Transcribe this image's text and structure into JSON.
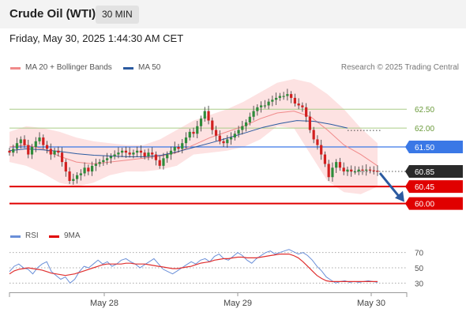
{
  "header": {
    "instrument": "Crude Oil (WTI)",
    "timeframe": "30 MIN"
  },
  "datetime": "Friday, May 30, 2025 1:44:30 AM CET",
  "legend": {
    "ma20": "MA 20 + Bollinger Bands",
    "ma50": "MA 50",
    "copyright": "Research © 2025 Trading Central",
    "rsi": "RSI",
    "ma9": "9MA"
  },
  "colors": {
    "ma20": "#f08a8a",
    "ma50": "#2b5aa0",
    "bollinger": "#fde2e2",
    "bullish": "#2e8b3a",
    "bearish": "#d22020",
    "target_line": "#aacc88",
    "pivot_line": "#3a78e6",
    "support_line": "#e00000",
    "rsi": "#6a8fd8",
    "rsi_ma": "#e03030",
    "arrow": "#2b5aa0"
  },
  "price_levels": [
    {
      "label": "62.50",
      "kind": "target"
    },
    {
      "label": "62.00",
      "kind": "target"
    },
    {
      "label": "61.50",
      "kind": "pivot"
    },
    {
      "label": "60.85",
      "kind": "last"
    },
    {
      "label": "60.45",
      "kind": "support"
    },
    {
      "label": "60.00",
      "kind": "support"
    }
  ],
  "rsi_axis": [
    "70",
    "50",
    "30"
  ],
  "x_axis": [
    "May 28",
    "May 29",
    "May 30"
  ],
  "chart_data": {
    "type": "candlestick",
    "y_range": [
      59.7,
      63.3
    ],
    "price_close": [
      61.35,
      61.45,
      61.6,
      61.7,
      61.55,
      61.3,
      61.5,
      61.65,
      61.75,
      61.55,
      61.45,
      61.3,
      61.4,
      61.35,
      61.1,
      60.85,
      60.6,
      60.65,
      60.75,
      60.8,
      60.95,
      60.85,
      61.0,
      61.05,
      61.1,
      61.15,
      61.2,
      61.25,
      61.3,
      61.35,
      61.4,
      61.35,
      61.3,
      61.35,
      61.4,
      61.35,
      61.25,
      61.35,
      61.3,
      61.15,
      61.0,
      61.2,
      61.3,
      61.4,
      61.5,
      61.45,
      61.6,
      61.75,
      61.9,
      61.85,
      62.05,
      62.25,
      62.45,
      62.2,
      61.95,
      61.8,
      61.65,
      61.6,
      61.7,
      61.75,
      61.85,
      61.95,
      62.05,
      62.15,
      62.3,
      62.45,
      62.55,
      62.6,
      62.6,
      62.7,
      62.75,
      62.8,
      62.85,
      62.85,
      62.9,
      62.8,
      62.65,
      62.6,
      62.55,
      62.3,
      61.95,
      61.7,
      61.55,
      61.3,
      61.05,
      60.7,
      60.95,
      61.1,
      60.95,
      60.85,
      60.9,
      60.85,
      60.85,
      60.9,
      60.88,
      60.9,
      60.88,
      60.87,
      60.85
    ],
    "bollinger_band": {
      "upper": [
        61.9,
        62.05,
        62.0,
        61.9,
        61.75,
        61.65,
        61.6,
        61.55,
        61.55,
        61.7,
        61.95,
        62.2,
        62.35,
        62.5,
        62.7,
        62.95,
        63.2,
        63.3,
        63.2,
        62.9,
        62.5,
        62.0,
        61.6
      ],
      "lower": [
        61.1,
        61.0,
        60.8,
        60.55,
        60.45,
        60.55,
        60.75,
        60.85,
        60.85,
        60.9,
        61.0,
        61.3,
        61.35,
        61.4,
        61.5,
        61.7,
        62.05,
        62.0,
        61.3,
        60.6,
        60.3,
        60.25,
        60.45
      ]
    },
    "ma20": [
      61.5,
      61.55,
      61.45,
      61.25,
      61.1,
      61.05,
      61.1,
      61.15,
      61.2,
      61.25,
      61.35,
      61.55,
      61.75,
      61.9,
      62.05,
      62.25,
      62.4,
      62.45,
      62.3,
      61.95,
      61.55,
      61.3,
      61.0
    ],
    "ma50": [
      61.4,
      61.45,
      61.42,
      61.38,
      61.32,
      61.28,
      61.26,
      61.24,
      61.24,
      61.28,
      61.38,
      61.5,
      61.62,
      61.75,
      61.88,
      62.02,
      62.12,
      62.2,
      62.18,
      62.1,
      62.0
    ],
    "forecast_arrow": {
      "from": 60.85,
      "to": 60.0
    },
    "rsi": {
      "y_range": [
        20,
        80
      ],
      "rsi": [
        45,
        52,
        55,
        50,
        48,
        42,
        50,
        55,
        58,
        45,
        40,
        35,
        38,
        30,
        35,
        45,
        52,
        50,
        55,
        60,
        55,
        58,
        52,
        55,
        60,
        62,
        58,
        55,
        50,
        54,
        58,
        62,
        55,
        48,
        45,
        42,
        46,
        50,
        54,
        58,
        55,
        60,
        62,
        58,
        65,
        68,
        62,
        60,
        65,
        70,
        66,
        60,
        56,
        62,
        66,
        70,
        72,
        68,
        70,
        72,
        74,
        71,
        68,
        70,
        66,
        60,
        52,
        46,
        38,
        34,
        30,
        32,
        33,
        31,
        32,
        31,
        32,
        33,
        32,
        31
      ],
      "ma": [
        42,
        46,
        48,
        49,
        50,
        49,
        48,
        47,
        45,
        43,
        42,
        41,
        40,
        41,
        42,
        44,
        46,
        48,
        50,
        52,
        54,
        55,
        55,
        55,
        55,
        56,
        56,
        55,
        55,
        55,
        54,
        53,
        52,
        51,
        50,
        49,
        49,
        50,
        51,
        52,
        54,
        56,
        57,
        58,
        60,
        61,
        62,
        62,
        63,
        64,
        64,
        63,
        63,
        63,
        64,
        65,
        66,
        67,
        68,
        68,
        68,
        66,
        63,
        58,
        52,
        46,
        40,
        36,
        33,
        32,
        32,
        32,
        32,
        32,
        32,
        32,
        32,
        32,
        32,
        32
      ]
    }
  }
}
